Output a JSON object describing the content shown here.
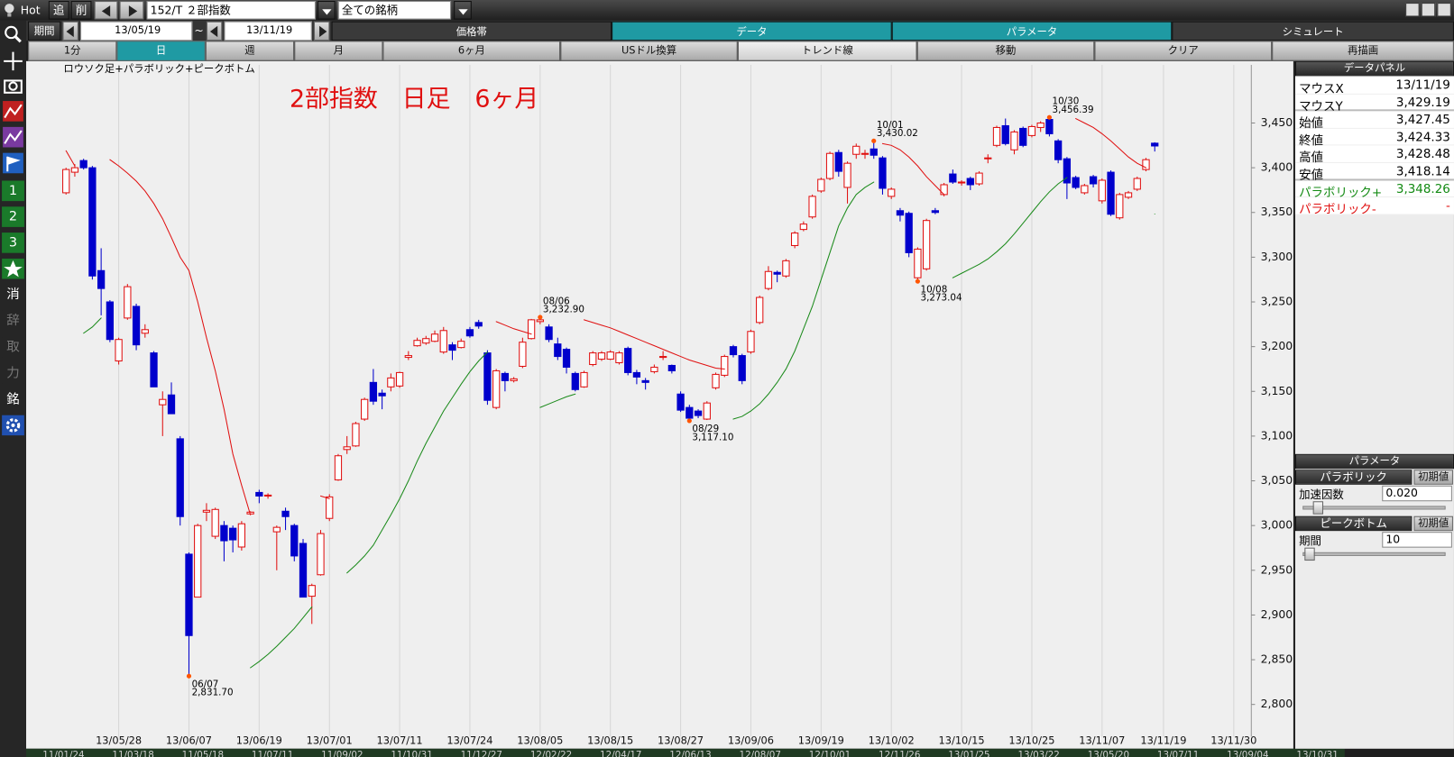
{
  "toolbar": {
    "hot": "Hot",
    "add": "追",
    "del": "削",
    "symbol": "152/T ２部指数",
    "universe": "全ての銘柄",
    "period_label": "期間",
    "from": "13/05/19",
    "tilde": "~",
    "to": "13/11/19",
    "tabs": [
      "価格帯",
      "データ",
      "パラメータ",
      "シミュレート"
    ],
    "buttons": [
      "1分",
      "日",
      "週",
      "月",
      "6ヶ月",
      "USドル換算",
      "トレンド線",
      "移動",
      "クリア",
      "再描画"
    ]
  },
  "side_tools": [
    "1",
    "2",
    "3",
    "消",
    "辞",
    "取",
    "力",
    "銘"
  ],
  "chart_data": {
    "type": "candlestick",
    "title": "ロウソク足+パラボリック+ピークボトム",
    "annotation": "2部指数　日足　6ヶ月",
    "up_color": "#e01010",
    "down_color": "#0000cc",
    "open": [
      3372,
      3395,
      3408,
      3400,
      3285,
      3250,
      3184,
      3232,
      3245,
      3215,
      3193,
      3135,
      3146,
      3097,
      2968,
      2920,
      3015,
      2988,
      3000,
      2997,
      2976,
      3013,
      3037,
      3033,
      2993,
      3016,
      3000,
      2980,
      2921,
      2945,
      3008,
      3051,
      3085,
      3089,
      3119,
      3160,
      3148,
      3155,
      3156,
      3188,
      3201,
      3204,
      3206,
      3194,
      3202,
      3199,
      3219,
      3227,
      3193,
      3132,
      3170,
      3162,
      3178,
      3209,
      3228,
      3222,
      3203,
      3197,
      3170,
      3155,
      3180,
      3186,
      3186,
      3182,
      3198,
      3171,
      3162,
      3172,
      3188,
      3179,
      3147,
      3132,
      3128,
      3119,
      3154,
      3168,
      3200,
      3190,
      3194,
      3227,
      3265,
      3283,
      3279,
      3313,
      3331,
      3345,
      3374,
      3388,
      3417,
      3378,
      3415,
      3415,
      3421,
      3411,
      3368,
      3352,
      3349,
      3277,
      3287,
      3352,
      3370,
      3393,
      3383,
      3388,
      3382,
      3410,
      3425,
      3447,
      3420,
      3444,
      3436,
      3445,
      3454,
      3430,
      3410,
      3389,
      3372,
      3390,
      3363,
      3395,
      3344,
      3367,
      3376,
      3398,
      3427.45
    ],
    "high": [
      3400,
      3404,
      3410,
      3402,
      3310,
      3252,
      3210,
      3270,
      3248,
      3225,
      3195,
      3150,
      3160,
      3100,
      2970,
      3002,
      3025,
      3020,
      3005,
      3000,
      3005,
      3016,
      3040,
      3036,
      3000,
      3020,
      3002,
      2985,
      2935,
      2995,
      3035,
      3080,
      3100,
      3116,
      3143,
      3175,
      3152,
      3170,
      3172,
      3195,
      3210,
      3212,
      3218,
      3222,
      3205,
      3209,
      3222,
      3230,
      3196,
      3175,
      3172,
      3166,
      3210,
      3231,
      3232.9,
      3225,
      3210,
      3199,
      3172,
      3173,
      3195,
      3195,
      3196,
      3195,
      3200,
      3174,
      3165,
      3180,
      3195,
      3180,
      3150,
      3135,
      3130,
      3139,
      3171,
      3191,
      3202,
      3192,
      3219,
      3257,
      3290,
      3285,
      3298,
      3329,
      3340,
      3370,
      3389,
      3418,
      3420,
      3407,
      3427,
      3420,
      3430.02,
      3413,
      3378,
      3355,
      3351,
      3311,
      3343,
      3355,
      3383,
      3398,
      3386,
      3390,
      3396,
      3415,
      3447,
      3455,
      3442,
      3446,
      3448,
      3452,
      3456.39,
      3432,
      3412,
      3391,
      3382,
      3392,
      3388,
      3397,
      3372,
      3374,
      3390,
      3411,
      3428.48
    ],
    "low": [
      3370,
      3390,
      3398,
      3275,
      3235,
      3205,
      3180,
      3230,
      3196,
      3210,
      3155,
      3100,
      3125,
      3000,
      2831.7,
      2920,
      3005,
      2985,
      2960,
      2970,
      2972,
      3012,
      3025,
      3030,
      2950,
      2995,
      2960,
      2920,
      2890,
      2944,
      3005,
      3050,
      3080,
      3088,
      3117,
      3135,
      3130,
      3150,
      3154,
      3185,
      3200,
      3202,
      3205,
      3192,
      3185,
      3198,
      3210,
      3220,
      3135,
      3130,
      3150,
      3160,
      3176,
      3208,
      3225,
      3205,
      3185,
      3170,
      3150,
      3154,
      3178,
      3184,
      3185,
      3180,
      3168,
      3158,
      3152,
      3170,
      3185,
      3170,
      3127,
      3117.1,
      3120,
      3118,
      3152,
      3166,
      3188,
      3158,
      3192,
      3225,
      3263,
      3272,
      3277,
      3310,
      3329,
      3343,
      3372,
      3386,
      3390,
      3360,
      3410,
      3410,
      3410,
      3370,
      3365,
      3340,
      3300,
      3273.04,
      3285,
      3348,
      3368,
      3382,
      3380,
      3375,
      3380,
      3405,
      3423,
      3425,
      3415,
      3423,
      3434,
      3440,
      3435,
      3405,
      3365,
      3376,
      3370,
      3378,
      3360,
      3346,
      3342,
      3365,
      3374,
      3396,
      3418.14
    ],
    "close": [
      3398,
      3400,
      3400,
      3279,
      3265,
      3208,
      3208,
      3267,
      3202,
      3219,
      3155,
      3141,
      3125,
      3010,
      2877,
      3000,
      3017,
      3018,
      2983,
      2984,
      3002,
      3015,
      3033,
      3034,
      2998,
      3010,
      2966,
      2920,
      2933,
      2991,
      3032,
      3078,
      3088,
      3114,
      3141,
      3139,
      3145,
      3165,
      3171,
      3190,
      3207,
      3209,
      3214,
      3218,
      3196,
      3206,
      3212,
      3223,
      3140,
      3173,
      3162,
      3164,
      3205,
      3230,
      3230,
      3208,
      3189,
      3177,
      3152,
      3171,
      3193,
      3193,
      3194,
      3193,
      3171,
      3166,
      3160,
      3177,
      3189,
      3173,
      3129,
      3120,
      3123,
      3137,
      3169,
      3189,
      3191,
      3162,
      3217,
      3255,
      3284,
      3281,
      3296,
      3327,
      3337,
      3368,
      3387,
      3416,
      3396,
      3405,
      3424,
      3416,
      3414,
      3377,
      3376,
      3347,
      3305,
      3309,
      3341,
      3350,
      3381,
      3384,
      3384,
      3381,
      3394,
      3411,
      3445,
      3427,
      3440,
      3425,
      3446,
      3450,
      3438,
      3409,
      3383,
      3378,
      3380,
      3382,
      3386,
      3348,
      3370,
      3372,
      3388,
      3409,
      3424.33
    ],
    "series": [
      {
        "color": "#e01010",
        "values": [
          3419,
          3402,
          null,
          null,
          null,
          3409,
          3402,
          3394,
          3385,
          3374,
          3360,
          3343,
          3322,
          3300,
          3285,
          3250,
          3210,
          3173,
          3130,
          3080,
          3045,
          3012,
          null,
          null,
          null,
          null,
          null,
          null,
          null,
          3033,
          3030,
          null,
          null,
          null,
          null,
          null,
          null,
          null,
          null,
          null,
          null,
          null,
          null,
          null,
          null,
          null,
          null,
          null,
          null,
          3228,
          3224,
          3220,
          3217,
          3214,
          null,
          null,
          null,
          null,
          null,
          3230,
          3227,
          3224,
          3221,
          3217,
          3213,
          3209,
          3205,
          3201,
          3197,
          3193,
          3189,
          3185,
          3182,
          3179,
          3176,
          3175,
          null,
          null,
          null,
          null,
          null,
          null,
          null,
          null,
          null,
          null,
          null,
          null,
          null,
          null,
          null,
          null,
          null,
          3427,
          3425,
          3420,
          3412,
          3402,
          3390,
          3380,
          3370,
          null,
          null,
          null,
          null,
          null,
          null,
          null,
          null,
          null,
          null,
          null,
          null,
          null,
          null,
          3455,
          3450,
          3445,
          3438,
          3430,
          3421,
          3412,
          3405,
          3400,
          null
        ]
      },
      {
        "color": "#1a8a1a",
        "values": [
          null,
          null,
          3215,
          3222,
          3232,
          null,
          null,
          null,
          null,
          null,
          null,
          null,
          null,
          null,
          null,
          null,
          null,
          null,
          null,
          null,
          null,
          2841,
          2848,
          2856,
          2865,
          2875,
          2885,
          2897,
          2909,
          null,
          null,
          null,
          2947,
          2956,
          2966,
          2978,
          2995,
          3012,
          3030,
          3050,
          3072,
          3092,
          3110,
          3128,
          3143,
          3158,
          3172,
          3184,
          3194,
          null,
          null,
          null,
          null,
          null,
          3132,
          3136,
          3140,
          3144,
          3147,
          null,
          null,
          null,
          null,
          null,
          null,
          null,
          null,
          null,
          null,
          null,
          null,
          null,
          null,
          null,
          null,
          null,
          3119,
          3122,
          3128,
          3136,
          3147,
          3160,
          3175,
          3195,
          3220,
          3245,
          3275,
          3305,
          3335,
          3355,
          3370,
          3378,
          3384,
          null,
          null,
          null,
          null,
          null,
          null,
          null,
          null,
          3277,
          3282,
          3287,
          3292,
          3298,
          3306,
          3315,
          3326,
          3338,
          3350,
          3362,
          3373,
          3382,
          3389,
          null,
          null,
          null,
          null,
          null,
          null,
          null,
          null,
          null,
          3348.26
        ]
      }
    ],
    "peaks": [
      {
        "x": 14,
        "date": "06/07",
        "value": 2831.7,
        "label": "2,831.70",
        "position": "below"
      },
      {
        "x": 54,
        "date": "08/06",
        "value": 3232.9,
        "label": "3,232.90",
        "position": "above"
      },
      {
        "x": 71,
        "date": "08/29",
        "value": 3117.1,
        "label": "3,117.10",
        "position": "below"
      },
      {
        "x": 92,
        "date": "10/01",
        "value": 3430.02,
        "label": "3,430.02",
        "position": "above"
      },
      {
        "x": 97,
        "date": "10/08",
        "value": 3273.04,
        "label": "3,273.04",
        "position": "below"
      },
      {
        "x": 112,
        "date": "10/30",
        "value": 3456.39,
        "label": "3,456.39",
        "position": "above"
      }
    ],
    "peak_color": "#ff5500",
    "xlim": [
      -0.5,
      135
    ],
    "xticks": [
      {
        "value": 6,
        "label": "13/05/28"
      },
      {
        "value": 14,
        "label": "13/06/07"
      },
      {
        "value": 22,
        "label": "13/06/19"
      },
      {
        "value": 30,
        "label": "13/07/01"
      },
      {
        "value": 38,
        "label": "13/07/11"
      },
      {
        "value": 46,
        "label": "13/07/24"
      },
      {
        "value": 54,
        "label": "13/08/05"
      },
      {
        "value": 62,
        "label": "13/08/15"
      },
      {
        "value": 70,
        "label": "13/08/27"
      },
      {
        "value": 78,
        "label": "13/09/06"
      },
      {
        "value": 86,
        "label": "13/09/19"
      },
      {
        "value": 94,
        "label": "13/10/02"
      },
      {
        "value": 102,
        "label": "13/10/15"
      },
      {
        "value": 110,
        "label": "13/10/25"
      },
      {
        "value": 118,
        "label": "13/11/07"
      },
      {
        "value": 125,
        "label": "13/11/19"
      },
      {
        "value": 133,
        "label": "13/11/30"
      }
    ],
    "ylim": [
      2764,
      3515
    ],
    "yticks": [
      {
        "value": 2800,
        "label": "2,800"
      },
      {
        "value": 2850,
        "label": "2,850"
      },
      {
        "value": 2900,
        "label": "2,900"
      },
      {
        "value": 2950,
        "label": "2,950"
      },
      {
        "value": 3000,
        "label": "3,000"
      },
      {
        "value": 3050,
        "label": "3,050"
      },
      {
        "value": 3100,
        "label": "3,100"
      },
      {
        "value": 3150,
        "label": "3,150"
      },
      {
        "value": 3200,
        "label": "3,200"
      },
      {
        "value": 3250,
        "label": "3,250"
      },
      {
        "value": 3300,
        "label": "3,300"
      },
      {
        "value": 3350,
        "label": "3,350"
      },
      {
        "value": 3400,
        "label": "3,400"
      },
      {
        "value": 3450,
        "label": "3,450"
      }
    ],
    "grid": "x"
  },
  "data_panel": {
    "title": "データパネル",
    "rows": [
      [
        "マウスX",
        "13/11/19"
      ],
      [
        "マウスY",
        "3,429.19"
      ],
      [
        "始値",
        "3,427.45"
      ],
      [
        "終値",
        "3,424.33"
      ],
      [
        "高値",
        "3,428.48"
      ],
      [
        "安値",
        "3,418.14"
      ],
      [
        "パラボリック+",
        "3,348.26"
      ],
      [
        "パラボリック-",
        "-"
      ]
    ]
  },
  "param_panel": {
    "title": "パラメータ",
    "sections": [
      {
        "name": "パラボリック",
        "reset": "初期値",
        "param": "加速因数",
        "value": "0.020"
      },
      {
        "name": "ピークボトム",
        "reset": "初期値",
        "param": "期間",
        "value": "10"
      }
    ]
  },
  "navigator": {
    "labels": [
      "11/01/24",
      "11/03/18",
      "11/05/18",
      "11/07/11",
      "11/09/02",
      "11/10/31",
      "11/12/27",
      "12/02/22",
      "12/04/17",
      "12/06/13",
      "12/08/07",
      "12/10/01",
      "12/11/26",
      "13/01/25",
      "13/03/22",
      "13/05/20",
      "13/07/11",
      "13/09/04",
      "13/10/31"
    ]
  }
}
